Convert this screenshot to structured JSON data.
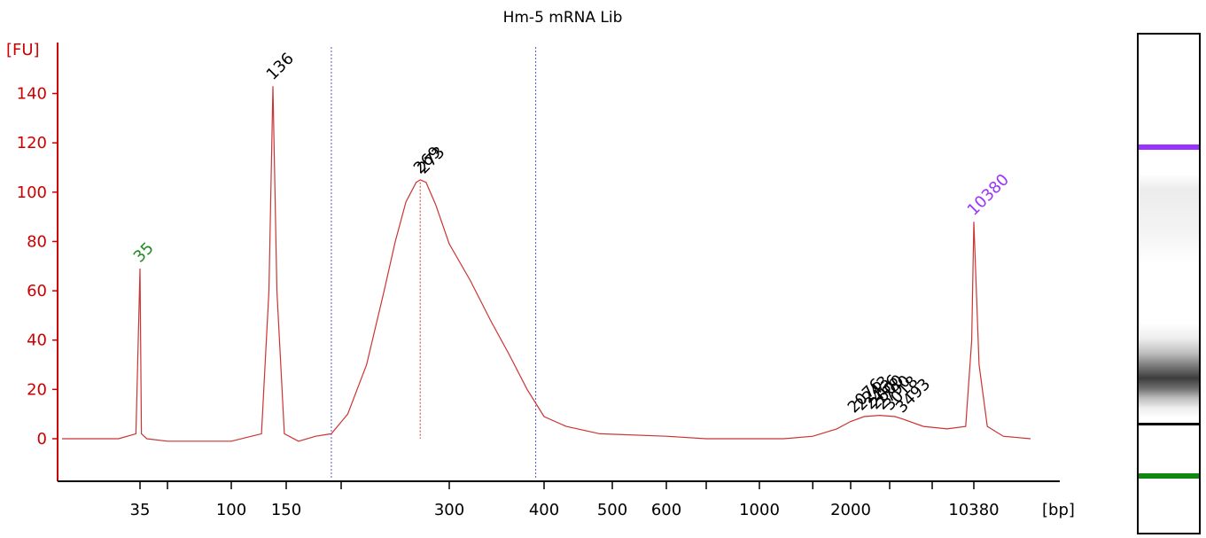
{
  "chart_data": {
    "type": "line",
    "title": "Hm-5 mRNA Lib",
    "ylabel": "[FU]",
    "xlabel": "[bp]",
    "ylim": [
      -17,
      158
    ],
    "yticks": [
      0,
      20,
      40,
      60,
      80,
      100,
      120,
      140
    ],
    "x_scale": "sizing-ladder",
    "x_tick_labels": [
      "35",
      "100",
      "150",
      "300",
      "400",
      "500",
      "600",
      "1000",
      "2000",
      "10380"
    ],
    "grid": false,
    "series": [
      {
        "color": "#cc3333",
        "x": [
          20,
          30,
          34,
          35,
          36,
          40,
          60,
          100,
          125,
          132,
          136,
          140,
          148,
          160,
          175,
          190,
          205,
          220,
          235,
          245,
          255,
          265,
          269,
          275,
          285,
          300,
          320,
          340,
          360,
          380,
          400,
          430,
          480,
          600,
          800,
          1000,
          1200,
          1500,
          1800,
          2000,
          2300,
          2700,
          3200,
          3500,
          4500,
          6500,
          9000,
          10000,
          10380,
          10800,
          11500,
          13000,
          16000
        ],
        "y": [
          0,
          0,
          2,
          69,
          2,
          0,
          -1,
          -1,
          2,
          60,
          143,
          60,
          2,
          -1,
          1,
          2,
          10,
          30,
          60,
          80,
          96,
          104,
          105,
          104,
          95,
          79,
          64,
          48,
          34,
          20,
          9,
          5,
          2,
          1,
          0,
          0,
          0,
          1,
          4,
          7,
          9,
          9.5,
          9,
          8,
          5,
          4,
          5,
          40,
          88,
          30,
          5,
          1,
          0
        ]
      }
    ],
    "peaks": [
      {
        "label": "35",
        "x": 35,
        "y": 69,
        "color": "#228822"
      },
      {
        "label": "136",
        "x": 136,
        "y": 143,
        "color": "#000000"
      },
      {
        "label": "269",
        "x": 269,
        "y": 105,
        "color": "#000000"
      },
      {
        "label": "273",
        "x": 273,
        "y": 105,
        "color": "#000000"
      },
      {
        "label": "2076",
        "x": 2076,
        "y": 8,
        "color": "#000000"
      },
      {
        "label": "2243",
        "x": 2243,
        "y": 9,
        "color": "#000000"
      },
      {
        "label": "2466",
        "x": 2466,
        "y": 9.5,
        "color": "#000000"
      },
      {
        "label": "2600",
        "x": 2600,
        "y": 9.5,
        "color": "#000000"
      },
      {
        "label": "2790",
        "x": 2790,
        "y": 9.3,
        "color": "#000000"
      },
      {
        "label": "3018",
        "x": 3018,
        "y": 9,
        "color": "#000000"
      },
      {
        "label": "3493",
        "x": 3493,
        "y": 8,
        "color": "#000000"
      },
      {
        "label": "10380",
        "x": 10380,
        "y": 88,
        "color": "#9933ff"
      }
    ],
    "region_markers_bp": [
      190,
      390
    ],
    "gel_bands": [
      {
        "position": 0.22,
        "color": "#9933ff"
      },
      {
        "position": 0.78,
        "color": "#000000"
      },
      {
        "position": 0.88,
        "color": "#118811"
      }
    ]
  }
}
